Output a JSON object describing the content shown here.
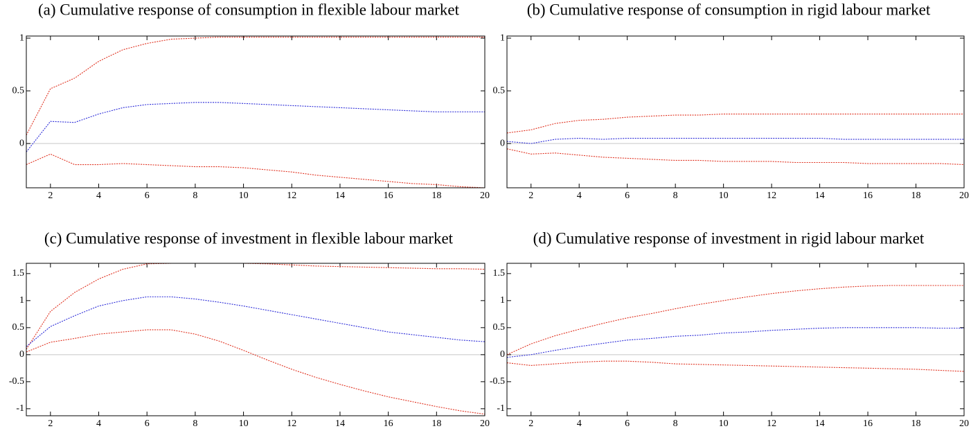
{
  "chart_data": [
    {
      "type": "line",
      "title": "(a) Cumulative response of consumption in flexible labour market",
      "x": [
        1,
        2,
        3,
        4,
        5,
        6,
        7,
        8,
        9,
        10,
        11,
        12,
        13,
        14,
        15,
        16,
        17,
        18,
        19,
        20
      ],
      "series": [
        {
          "color": "#e0301e",
          "values": [
            0.08,
            0.52,
            0.62,
            0.78,
            0.89,
            0.95,
            0.99,
            1.0,
            1.01,
            1.01,
            1.01,
            1.01,
            1.01,
            1.01,
            1.01,
            1.01,
            1.01,
            1.01,
            1.01,
            1.01
          ]
        },
        {
          "color": "#2a2ad8",
          "values": [
            -0.08,
            0.21,
            0.2,
            0.28,
            0.34,
            0.37,
            0.38,
            0.39,
            0.39,
            0.38,
            0.37,
            0.36,
            0.35,
            0.34,
            0.33,
            0.32,
            0.31,
            0.3,
            0.3,
            0.3
          ]
        },
        {
          "color": "#e0301e",
          "values": [
            -0.2,
            -0.1,
            -0.2,
            -0.2,
            -0.19,
            -0.2,
            -0.21,
            -0.22,
            -0.22,
            -0.23,
            -0.25,
            -0.27,
            -0.3,
            -0.32,
            -0.34,
            -0.36,
            -0.38,
            -0.39,
            -0.41,
            -0.42
          ]
        }
      ],
      "xlim": [
        1,
        20
      ],
      "xticks": [
        2,
        4,
        6,
        8,
        10,
        12,
        14,
        16,
        18,
        20
      ],
      "ylim": [
        -0.42,
        1.02
      ],
      "yticks": [
        0,
        0.5,
        1
      ],
      "zeroline": true
    },
    {
      "type": "line",
      "title": "(b) Cumulative response of consumption in rigid labour market",
      "x": [
        1,
        2,
        3,
        4,
        5,
        6,
        7,
        8,
        9,
        10,
        11,
        12,
        13,
        14,
        15,
        16,
        17,
        18,
        19,
        20
      ],
      "series": [
        {
          "color": "#e0301e",
          "values": [
            0.1,
            0.13,
            0.19,
            0.22,
            0.23,
            0.25,
            0.26,
            0.27,
            0.27,
            0.28,
            0.28,
            0.28,
            0.28,
            0.28,
            0.28,
            0.28,
            0.28,
            0.28,
            0.28,
            0.28
          ]
        },
        {
          "color": "#2a2ad8",
          "values": [
            0.02,
            0.0,
            0.04,
            0.05,
            0.04,
            0.05,
            0.05,
            0.05,
            0.05,
            0.05,
            0.05,
            0.05,
            0.05,
            0.05,
            0.04,
            0.04,
            0.04,
            0.04,
            0.04,
            0.04
          ]
        },
        {
          "color": "#e0301e",
          "values": [
            -0.05,
            -0.1,
            -0.09,
            -0.11,
            -0.13,
            -0.14,
            -0.15,
            -0.16,
            -0.16,
            -0.17,
            -0.17,
            -0.17,
            -0.18,
            -0.18,
            -0.18,
            -0.19,
            -0.19,
            -0.19,
            -0.19,
            -0.2
          ]
        }
      ],
      "xlim": [
        1,
        20
      ],
      "xticks": [
        2,
        4,
        6,
        8,
        10,
        12,
        14,
        16,
        18,
        20
      ],
      "ylim": [
        -0.42,
        1.02
      ],
      "yticks": [
        0,
        0.5,
        1
      ],
      "zeroline": true
    },
    {
      "type": "line",
      "title": "(c) Cumulative response of investment in flexible labour market",
      "x": [
        1,
        2,
        3,
        4,
        5,
        6,
        7,
        8,
        9,
        10,
        11,
        12,
        13,
        14,
        15,
        16,
        17,
        18,
        19,
        20
      ],
      "series": [
        {
          "color": "#e0301e",
          "values": [
            0.1,
            0.8,
            1.15,
            1.4,
            1.58,
            1.68,
            1.69,
            1.69,
            1.69,
            1.69,
            1.68,
            1.66,
            1.64,
            1.63,
            1.62,
            1.61,
            1.6,
            1.59,
            1.59,
            1.58
          ]
        },
        {
          "color": "#2a2ad8",
          "values": [
            0.15,
            0.52,
            0.72,
            0.9,
            1.0,
            1.07,
            1.07,
            1.03,
            0.97,
            0.9,
            0.82,
            0.74,
            0.66,
            0.58,
            0.5,
            0.42,
            0.37,
            0.32,
            0.27,
            0.24
          ]
        },
        {
          "color": "#e0301e",
          "values": [
            0.05,
            0.23,
            0.3,
            0.38,
            0.42,
            0.46,
            0.46,
            0.38,
            0.25,
            0.08,
            -0.1,
            -0.27,
            -0.42,
            -0.55,
            -0.67,
            -0.78,
            -0.87,
            -0.96,
            -1.04,
            -1.1
          ]
        }
      ],
      "xlim": [
        1,
        20
      ],
      "xticks": [
        2,
        4,
        6,
        8,
        10,
        12,
        14,
        16,
        18,
        20
      ],
      "ylim": [
        -1.13,
        1.69
      ],
      "yticks": [
        -1,
        -0.5,
        0,
        0.5,
        1,
        1.5
      ],
      "zeroline": true
    },
    {
      "type": "line",
      "title": "(d) Cumulative response of investment in rigid labour market",
      "x": [
        1,
        2,
        3,
        4,
        5,
        6,
        7,
        8,
        9,
        10,
        11,
        12,
        13,
        14,
        15,
        16,
        17,
        18,
        19,
        20
      ],
      "series": [
        {
          "color": "#e0301e",
          "values": [
            0.0,
            0.2,
            0.35,
            0.47,
            0.58,
            0.68,
            0.76,
            0.85,
            0.93,
            1.0,
            1.07,
            1.13,
            1.18,
            1.22,
            1.25,
            1.27,
            1.28,
            1.28,
            1.28,
            1.28
          ]
        },
        {
          "color": "#2a2ad8",
          "values": [
            -0.05,
            0.0,
            0.08,
            0.15,
            0.21,
            0.27,
            0.3,
            0.34,
            0.36,
            0.4,
            0.42,
            0.45,
            0.47,
            0.49,
            0.5,
            0.5,
            0.5,
            0.5,
            0.49,
            0.49
          ]
        },
        {
          "color": "#e0301e",
          "values": [
            -0.15,
            -0.2,
            -0.17,
            -0.14,
            -0.12,
            -0.12,
            -0.14,
            -0.17,
            -0.18,
            -0.19,
            -0.2,
            -0.21,
            -0.22,
            -0.23,
            -0.24,
            -0.25,
            -0.26,
            -0.27,
            -0.29,
            -0.31
          ]
        }
      ],
      "xlim": [
        1,
        20
      ],
      "xticks": [
        2,
        4,
        6,
        8,
        10,
        12,
        14,
        16,
        18,
        20
      ],
      "ylim": [
        -1.13,
        1.69
      ],
      "yticks": [
        -1,
        -0.5,
        0,
        0.5,
        1,
        1.5
      ],
      "zeroline": true
    }
  ]
}
